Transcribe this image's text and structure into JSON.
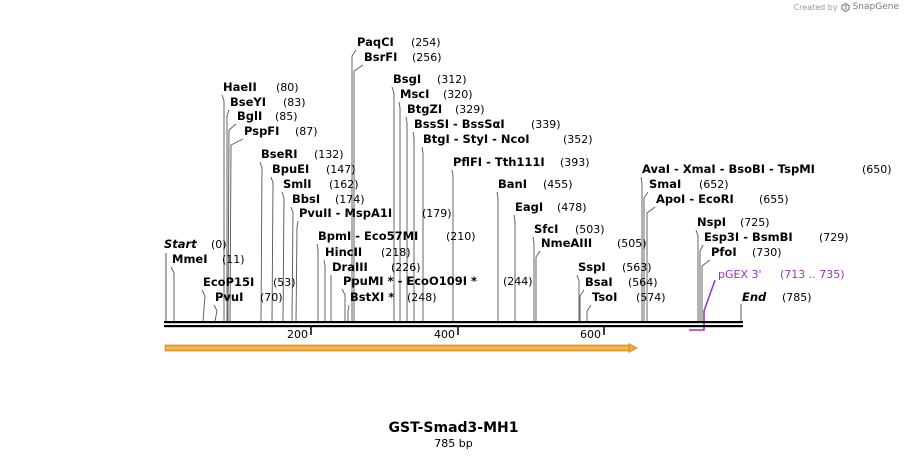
{
  "credit": {
    "prefix": "Created by",
    "brand": "SnapGene"
  },
  "map": {
    "title": "GST-Smad3-MH1",
    "subtitle": "785 bp",
    "length": 785,
    "ticks": [
      "200",
      "400",
      "600"
    ],
    "start_label": {
      "name": "Start",
      "pos": "(0)"
    },
    "end_label": {
      "name": "End",
      "pos": "(785)"
    },
    "feature": {
      "name": "pGEX 3'",
      "range": "(713 .. 735)",
      "color": "#9b2fc9"
    },
    "orf_color": "#f0a830",
    "enzymes": [
      {
        "name": "MmeI",
        "pos": "(11)"
      },
      {
        "name": "EcoP15I",
        "pos": "(53)"
      },
      {
        "name": "PvuI",
        "pos": "(70)"
      },
      {
        "name": "HaeII",
        "pos": "(80)"
      },
      {
        "name": "BseYI",
        "pos": "(83)"
      },
      {
        "name": "BglI",
        "pos": "(85)"
      },
      {
        "name": "PspFI",
        "pos": "(87)"
      },
      {
        "name": "BseRI",
        "pos": "(132)"
      },
      {
        "name": "BpuEI",
        "pos": "(147)"
      },
      {
        "name": "SmlI",
        "pos": "(162)"
      },
      {
        "name": "BbsI",
        "pos": "(174)"
      },
      {
        "name": "PvuII - MspA1I",
        "pos": "(179)"
      },
      {
        "name": "BpmI - Eco57MI",
        "pos": "(210)"
      },
      {
        "name": "HincII",
        "pos": "(218)"
      },
      {
        "name": "DraIII",
        "pos": "(226)"
      },
      {
        "name": "PpuMI * - EcoO109I *",
        "pos": "(244)"
      },
      {
        "name": "BstXI *",
        "pos": "(248)"
      },
      {
        "name": "PaqCI",
        "pos": "(254)"
      },
      {
        "name": "BsrFI",
        "pos": "(256)"
      },
      {
        "name": "BsgI",
        "pos": "(312)"
      },
      {
        "name": "MscI",
        "pos": "(320)"
      },
      {
        "name": "BtgZI",
        "pos": "(329)"
      },
      {
        "name": "BssSI - BssSαI",
        "pos": "(339)"
      },
      {
        "name": "BtgI - StyI - NcoI",
        "pos": "(352)"
      },
      {
        "name": "PflFI - Tth111I",
        "pos": "(393)"
      },
      {
        "name": "BanI",
        "pos": "(455)"
      },
      {
        "name": "EagI",
        "pos": "(478)"
      },
      {
        "name": "SfcI",
        "pos": "(503)"
      },
      {
        "name": "NmeAIII",
        "pos": "(505)"
      },
      {
        "name": "SspI",
        "pos": "(563)"
      },
      {
        "name": "BsaI",
        "pos": "(564)"
      },
      {
        "name": "TsoI",
        "pos": "(574)"
      },
      {
        "name": "AvaI - XmaI - BsoBI - TspMI",
        "pos": "(650)"
      },
      {
        "name": "SmaI",
        "pos": "(652)"
      },
      {
        "name": "ApoI - EcoRI",
        "pos": "(655)"
      },
      {
        "name": "NspI",
        "pos": "(725)"
      },
      {
        "name": "Esp3I - BsmBI",
        "pos": "(729)"
      },
      {
        "name": "PfoI",
        "pos": "(730)"
      }
    ]
  }
}
